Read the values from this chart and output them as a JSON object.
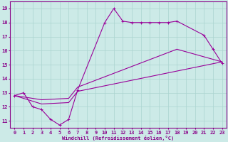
{
  "bg_color": "#cceae7",
  "line_color": "#990099",
  "xlabel": "Windchill (Refroidissement éolien,°C)",
  "xlim": [
    -0.5,
    23.5
  ],
  "ylim": [
    10.5,
    19.5
  ],
  "yticks": [
    11,
    12,
    13,
    14,
    15,
    16,
    17,
    18,
    19
  ],
  "xticks": [
    0,
    1,
    2,
    3,
    4,
    5,
    6,
    7,
    8,
    9,
    10,
    11,
    12,
    13,
    14,
    15,
    16,
    17,
    18,
    19,
    20,
    21,
    22,
    23
  ],
  "line1_x": [
    0,
    1,
    2,
    3,
    4,
    5,
    6,
    7,
    10,
    11,
    12,
    13,
    14,
    15,
    16,
    17,
    18,
    21,
    22,
    23
  ],
  "line1_y": [
    12.8,
    13.0,
    12.0,
    11.8,
    11.1,
    10.7,
    11.1,
    13.2,
    18.0,
    19.0,
    18.1,
    18.0,
    18.0,
    18.0,
    18.0,
    18.0,
    18.1,
    17.1,
    16.1,
    15.1
  ],
  "line2_x": [
    0,
    3,
    6,
    7,
    23
  ],
  "line2_y": [
    12.8,
    12.2,
    12.3,
    13.1,
    15.2
  ],
  "line3_x": [
    0,
    3,
    6,
    7,
    18,
    23
  ],
  "line3_y": [
    12.8,
    12.5,
    12.6,
    13.4,
    16.1,
    15.2
  ],
  "grid_color": "#aad4d0",
  "grid_linewidth": 0.5,
  "line_linewidth": 0.8,
  "marker": "+",
  "markersize": 3,
  "xlabel_fontsize": 5,
  "tick_fontsize": 5,
  "xlabel_color": "#880088",
  "tick_color": "#880088",
  "spine_color": "#880088"
}
